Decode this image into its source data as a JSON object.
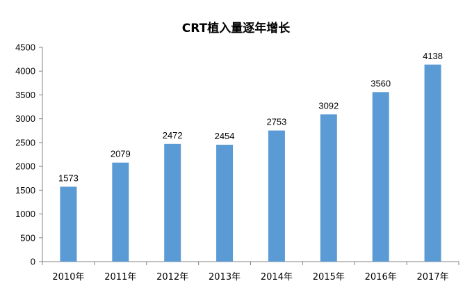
{
  "chart_data": {
    "type": "bar",
    "title": "CRT植入量逐年增长",
    "categories": [
      "2010年",
      "2011年",
      "2012年",
      "2013年",
      "2014年",
      "2015年",
      "2016年",
      "2017年"
    ],
    "values": [
      1573,
      2079,
      2472,
      2454,
      2753,
      3092,
      3560,
      4138
    ],
    "ylim": [
      0,
      4500
    ],
    "yticks": [
      0,
      500,
      1000,
      1500,
      2000,
      2500,
      3000,
      3500,
      4000,
      4500
    ],
    "grid": false,
    "bar_color": "#5B9BD5",
    "data_labels": true
  }
}
